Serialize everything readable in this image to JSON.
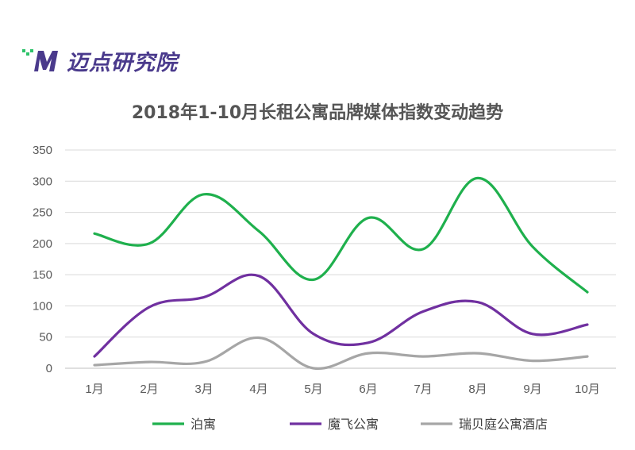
{
  "logo": {
    "text": "迈点研究院",
    "mark_name": "M-logo-mark"
  },
  "chart_data": {
    "type": "line",
    "title": "2018年1-10月长租公寓品牌媒体指数变动趋势",
    "categories": [
      "1月",
      "2月",
      "3月",
      "4月",
      "5月",
      "6月",
      "7月",
      "8月",
      "9月",
      "10月"
    ],
    "ylim": [
      0,
      350
    ],
    "yticks": [
      0,
      50,
      100,
      150,
      200,
      250,
      300,
      350
    ],
    "grid": true,
    "legend_position": "bottom",
    "smooth": true,
    "series": [
      {
        "name": "泊寓",
        "color": "#1fb04d",
        "values": [
          216,
          200,
          279,
          220,
          142,
          241,
          191,
          305,
          195,
          122
        ]
      },
      {
        "name": "魔飞公寓",
        "color": "#7030a0",
        "values": [
          19,
          98,
          114,
          148,
          55,
          41,
          91,
          106,
          55,
          70
        ]
      },
      {
        "name": "瑞贝庭公寓酒店",
        "color": "#a6a6a6",
        "values": [
          5,
          10,
          10,
          49,
          0,
          24,
          19,
          24,
          12,
          19
        ]
      }
    ]
  }
}
